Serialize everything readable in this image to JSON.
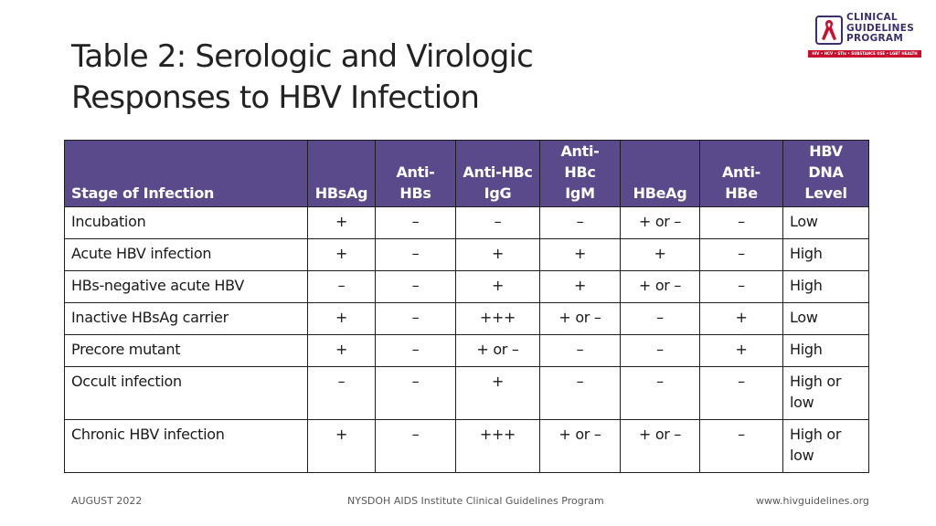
{
  "title": {
    "line1": "Table 2: Serologic and Virologic",
    "line2": "Responses to HBV Infection"
  },
  "logo": {
    "line1": "CLINICAL",
    "line2": "GUIDELINES",
    "line3": "PROGRAM",
    "tagline": "HIV • HCV • STIs • SUBSTANCE USE • LGBT HEALTH",
    "colors": {
      "primary": "#3b2f6e",
      "ribbon": "#c8102e"
    }
  },
  "table": {
    "header_color": "#5b4a8b",
    "headers": {
      "stage": "Stage of Infection",
      "hbsag": "HBsAg",
      "anti_hbs": "Anti-HBs",
      "anti_hbc_igg_1": "Anti-HBc",
      "anti_hbc_igg_2": "IgG",
      "anti_hbc_igm_1": "Anti-HBc",
      "anti_hbc_igm_2": "IgM",
      "hbeag": "HBeAg",
      "anti_hbe": "Anti-HBe",
      "dna_1": "HBV DNA",
      "dna_2": "Level"
    },
    "rows": [
      {
        "stage": "Incubation",
        "hbsag": "+",
        "anti_hbs": "–",
        "igg": "–",
        "igm": "–",
        "hbeag": "+ or –",
        "anti_hbe": "–",
        "dna": "Low"
      },
      {
        "stage": "Acute HBV infection",
        "hbsag": "+",
        "anti_hbs": "–",
        "igg": "+",
        "igm": "+",
        "hbeag": "+",
        "anti_hbe": "–",
        "dna": "High"
      },
      {
        "stage": "HBs-negative acute HBV",
        "hbsag": "–",
        "anti_hbs": "–",
        "igg": "+",
        "igm": "+",
        "hbeag": "+ or –",
        "anti_hbe": "–",
        "dna": "High"
      },
      {
        "stage": "Inactive HBsAg carrier",
        "hbsag": "+",
        "anti_hbs": "–",
        "igg": "+++",
        "igm": "+ or –",
        "hbeag": "–",
        "anti_hbe": "+",
        "dna": "Low"
      },
      {
        "stage": "Precore mutant",
        "hbsag": "+",
        "anti_hbs": "–",
        "igg": "+ or –",
        "igm": "–",
        "hbeag": "–",
        "anti_hbe": "+",
        "dna": "High"
      },
      {
        "stage": "Occult infection",
        "hbsag": "–",
        "anti_hbs": "–",
        "igg": "+",
        "igm": "–",
        "hbeag": "–",
        "anti_hbe": "–",
        "dna_1": "High or",
        "dna_2": "low"
      },
      {
        "stage": "Chronic HBV infection",
        "hbsag": "+",
        "anti_hbs": "–",
        "igg": "+++",
        "igm": "+ or –",
        "hbeag": "+ or –",
        "anti_hbe": "–",
        "dna_1": "High or",
        "dna_2": "low"
      }
    ]
  },
  "footer": {
    "date": "AUGUST 2022",
    "program": "NYSDOH AIDS Institute Clinical Guidelines Program",
    "url": "www.hivguidelines.org"
  }
}
